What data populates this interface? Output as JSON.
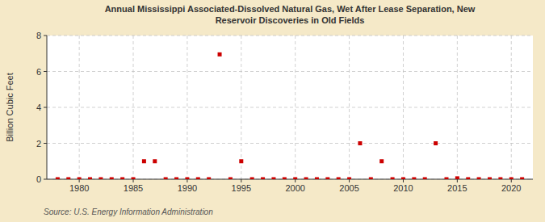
{
  "chart_data": {
    "type": "scatter",
    "title": "Annual Mississippi Associated-Dissolved Natural Gas, Wet After Lease Separation, New\nReservoir Discoveries in Old Fields",
    "ylabel": "Billion Cubic Feet",
    "source": "Source: U.S. Energy Information Administration",
    "x": [
      1978,
      1979,
      1980,
      1981,
      1982,
      1983,
      1984,
      1985,
      1986,
      1987,
      1988,
      1989,
      1990,
      1991,
      1992,
      1993,
      1994,
      1995,
      1996,
      1997,
      1998,
      1999,
      2000,
      2001,
      2002,
      2003,
      2004,
      2005,
      2006,
      2007,
      2008,
      2009,
      2010,
      2011,
      2012,
      2013,
      2014,
      2015,
      2016,
      2017,
      2018,
      2019,
      2020,
      2021
    ],
    "values": [
      0.0,
      0.0,
      0.0,
      0.0,
      0.0,
      0.0,
      0.0,
      0.0,
      1.0,
      1.0,
      0.0,
      0.0,
      0.0,
      0.0,
      0.0,
      6.95,
      0.0,
      1.0,
      0.0,
      0.0,
      0.0,
      0.0,
      0.0,
      0.0,
      0.0,
      0.0,
      0.0,
      0.0,
      2.0,
      0.0,
      1.0,
      0.0,
      0.0,
      0.0,
      0.0,
      2.0,
      0.0,
      0.05,
      0.0,
      0.0,
      0.0,
      0.0,
      0.0,
      0.0
    ],
    "color": "#cc0000",
    "marker": "square",
    "xlim": [
      1977,
      2022
    ],
    "ylim": [
      0,
      8
    ],
    "xticks": [
      1980,
      1985,
      1990,
      1995,
      2000,
      2005,
      2010,
      2015,
      2020
    ],
    "yticks": [
      0,
      2,
      4,
      6,
      8
    ],
    "grid": true
  }
}
